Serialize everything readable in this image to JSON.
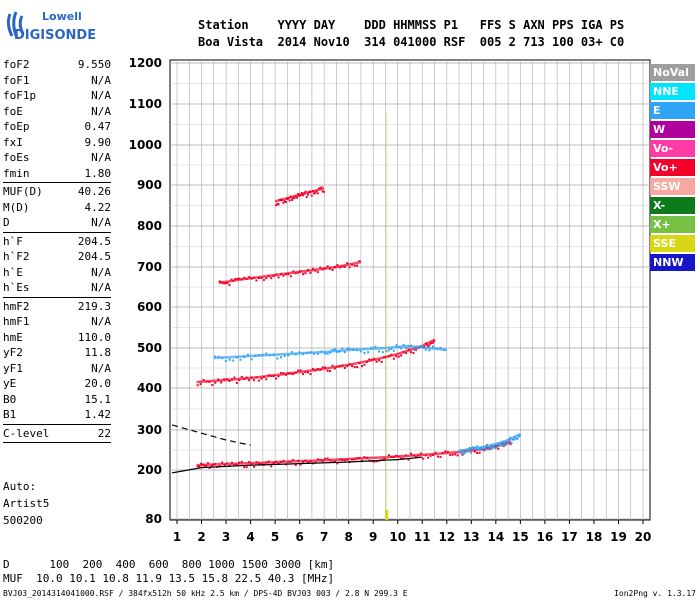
{
  "logo": {
    "line1": "Lowell",
    "line2": "DIGISONDE"
  },
  "header": {
    "row1": "Station    YYYY DAY    DDD HHMMSS P1   FFS S AXN PPS IGA PS",
    "row2": "Boa Vista  2014 Nov10  314 041000 RSF  005 2 713 100 03+ C0"
  },
  "params": {
    "g1": [
      {
        "label": "foF2",
        "value": "9.550"
      },
      {
        "label": "foF1",
        "value": "N/A"
      },
      {
        "label": "foF1p",
        "value": "N/A"
      },
      {
        "label": "foE",
        "value": "N/A"
      },
      {
        "label": "foEp",
        "value": "0.47"
      },
      {
        "label": "fxI",
        "value": "9.90"
      },
      {
        "label": "foEs",
        "value": "N/A"
      },
      {
        "label": "fmin",
        "value": "1.80"
      }
    ],
    "g2": [
      {
        "label": "MUF(D)",
        "value": "40.26"
      },
      {
        "label": "M(D)",
        "value": "4.22"
      },
      {
        "label": "D",
        "value": "N/A"
      }
    ],
    "g3": [
      {
        "label": "h`F",
        "value": "204.5"
      },
      {
        "label": "h`F2",
        "value": "204.5"
      },
      {
        "label": "h`E",
        "value": "N/A"
      },
      {
        "label": "h`Es",
        "value": "N/A"
      }
    ],
    "g4": [
      {
        "label": "hmF2",
        "value": "219.3"
      },
      {
        "label": "hmF1",
        "value": "N/A"
      },
      {
        "label": "hmE",
        "value": "110.0"
      },
      {
        "label": "yF2",
        "value": "11.8"
      },
      {
        "label": "yF1",
        "value": "N/A"
      },
      {
        "label": "yE",
        "value": "20.0"
      },
      {
        "label": "B0",
        "value": "15.1"
      },
      {
        "label": "B1",
        "value": "1.42"
      }
    ],
    "g5": [
      {
        "label": "C-level",
        "value": "22"
      }
    ]
  },
  "autoscale": {
    "line1": "Auto:",
    "line2": "Artist5",
    "line3": "500200"
  },
  "legend": [
    {
      "label": "NoVal",
      "color": "#9e9e9e"
    },
    {
      "label": "NNE",
      "color": "#00e5ff"
    },
    {
      "label": "E",
      "color": "#2fa3f5"
    },
    {
      "label": "W",
      "color": "#b0009c"
    },
    {
      "label": "Vo-",
      "color": "#ff3ca6"
    },
    {
      "label": "Vo+",
      "color": "#f2002a"
    },
    {
      "label": "SSW",
      "color": "#f7a8a0"
    },
    {
      "label": "X-",
      "color": "#0d7a1b"
    },
    {
      "label": "X+",
      "color": "#76c043"
    },
    {
      "label": "SSE",
      "color": "#d7d715"
    },
    {
      "label": "NNW",
      "color": "#1616c8"
    }
  ],
  "footer": {
    "dist_row": "D      100  200  400  600  800 1000 1500 3000 [km]",
    "muf_row": "MUF  10.0 10.1 10.8 11.9 13.5 15.8 22.5 40.3 [MHz]",
    "file_row": "BVJ03_2014314041000.RSF / 384fx512h 50 kHz 2.5 km / DPS-4D BVJ03 003 / 2.8 N 299.3 E",
    "version": "Ion2Png v. 1.3.17"
  },
  "chart_data": {
    "type": "scatter",
    "title": "",
    "xlabel": "",
    "ylabel": "",
    "xlim": [
      0.8,
      20.1
    ],
    "ylim": [
      80,
      1210
    ],
    "y_scale": "nonlinear (approximately logarithmic)",
    "x_ticks": [
      1,
      2,
      3,
      4,
      5,
      6,
      7,
      8,
      9,
      10,
      11,
      12,
      13,
      14,
      15,
      16,
      17,
      18,
      19,
      20
    ],
    "y_ticks": [
      80,
      200,
      300,
      400,
      500,
      600,
      700,
      800,
      900,
      1000,
      1100,
      1200
    ],
    "grid": true,
    "legend_position": "right",
    "traces": [
      {
        "name": "F-layer O-trace",
        "color": "#f2002a",
        "x": [
          1.8,
          2.5,
          3.5,
          4.5,
          5.5,
          6.5,
          7.5,
          8.5,
          9.5,
          10.5,
          11.5,
          12.5,
          13.5,
          14.2,
          14.6
        ],
        "y": [
          212,
          214,
          216,
          218,
          221,
          223,
          226,
          229,
          232,
          236,
          240,
          245,
          252,
          262,
          272
        ]
      },
      {
        "name": "F-layer E-trace",
        "color": "#2fa3f5",
        "x": [
          12.5,
          13.0,
          13.5,
          14.0,
          14.5,
          15.0
        ],
        "y": [
          248,
          252,
          258,
          265,
          275,
          290
        ]
      },
      {
        "name": "2-hop",
        "color": "#f2002a",
        "x": [
          1.8,
          3,
          4,
          5,
          6,
          7,
          8,
          9,
          10,
          11,
          11.5
        ],
        "y": [
          415,
          420,
          425,
          432,
          440,
          448,
          458,
          470,
          485,
          505,
          520
        ]
      },
      {
        "name": "2-hop E",
        "color": "#2fa3f5",
        "x": [
          2.5,
          4,
          5.5,
          7,
          8,
          9.5,
          10.5,
          12
        ],
        "y": [
          475,
          480,
          485,
          490,
          495,
          500,
          505,
          495
        ]
      },
      {
        "name": "3-hop",
        "color": "#f2002a",
        "x": [
          2.7,
          3.5,
          4.5,
          5.5,
          6.5,
          7.5,
          8.5
        ],
        "y": [
          660,
          668,
          676,
          684,
          692,
          700,
          712
        ]
      },
      {
        "name": "4-hop",
        "color": "#f2002a",
        "x": [
          5.0,
          5.5,
          6.0,
          6.5,
          7.0
        ],
        "y": [
          860,
          868,
          876,
          884,
          892
        ]
      }
    ],
    "fitted_curves": [
      {
        "name": "profile",
        "color": "#000000",
        "x": [
          0.8,
          2,
          4,
          6,
          8,
          10,
          11
        ],
        "y": [
          193,
          206,
          212,
          216,
          220,
          226,
          232
        ]
      },
      {
        "name": "dashed",
        "color": "#000000",
        "dashed": true,
        "x": [
          0.8,
          2,
          3,
          4
        ],
        "y": [
          312,
          292,
          275,
          262
        ]
      }
    ],
    "markers": [
      {
        "name": "foF2",
        "x": 9.55,
        "color": "#d7d715"
      }
    ]
  }
}
